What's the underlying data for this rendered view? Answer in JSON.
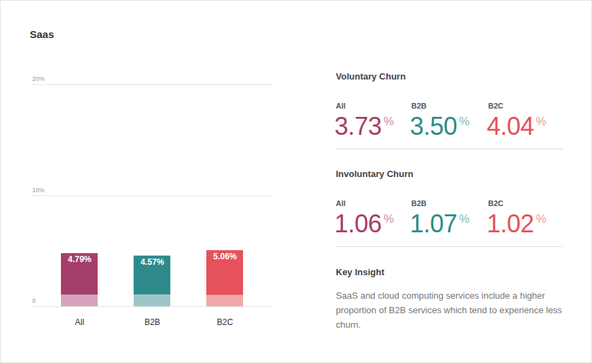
{
  "chart_data": {
    "type": "bar",
    "title": "Saas",
    "categories": [
      "All",
      "B2B",
      "B2C"
    ],
    "series": [
      {
        "name": "Voluntary Churn",
        "colors": [
          "#a63e6b",
          "#2e8a8a",
          "#e5525b"
        ],
        "values": [
          3.73,
          3.5,
          4.04
        ],
        "value_labels": [
          "3.73%",
          "3.50%",
          "4.04%"
        ]
      },
      {
        "name": "Involuntary Churn",
        "colors": [
          "#d7a4bb",
          "#9dc6c8",
          "#f0a8a9"
        ],
        "values": [
          1.06,
          1.07,
          1.02
        ],
        "value_labels": [
          "1.06%",
          "1.07%",
          "1.02%"
        ]
      }
    ],
    "totals": [
      4.79,
      4.57,
      5.06
    ],
    "total_labels": [
      "4.79%",
      "4.57%",
      "5.06%"
    ],
    "stacked": true,
    "data_labels": true,
    "grid": true,
    "ylim": [
      0,
      20
    ],
    "yticks": [
      0,
      {
        "value": 10,
        "label": "10%"
      },
      {
        "value": 20,
        "label": "20%"
      }
    ],
    "key_insight": {
      "title": "Key Insight",
      "text": "SaaS and cloud computing services include a higher proportion of B2B services which tend to experience less churn."
    }
  }
}
